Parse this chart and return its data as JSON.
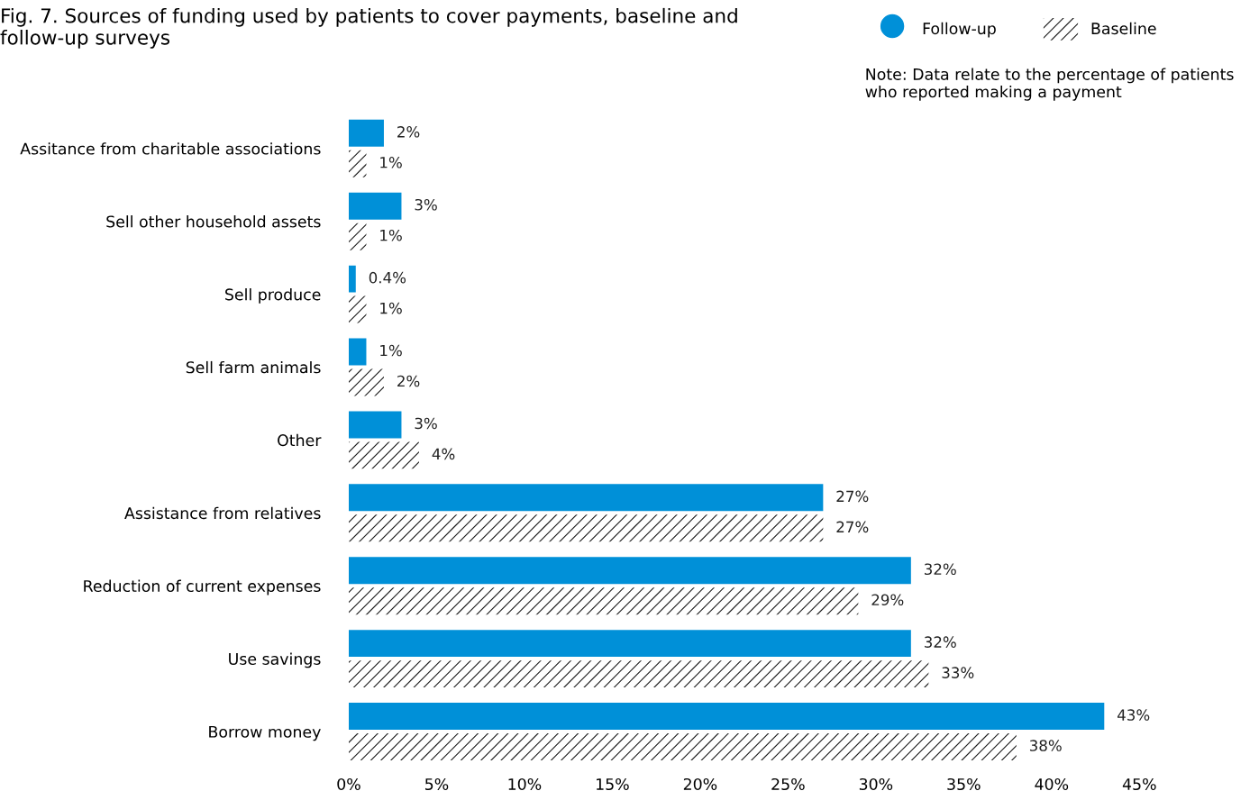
{
  "chart_data": {
    "type": "bar",
    "orientation": "horizontal",
    "title": "Fig. 7. Sources of funding used by patients to cover payments, baseline and follow-up surveys",
    "annotations": [
      "Note: Data relate to the percentage of patients who reported making a payment"
    ],
    "categories": [
      "Assitance from charitable associations",
      "Sell other household assets",
      "Sell produce",
      "Sell farm animals",
      "Other",
      "Assistance from relatives",
      "Reduction of current expenses",
      "Use savings",
      "Borrow money"
    ],
    "series": [
      {
        "name": "Follow-up",
        "color": "#0090d8",
        "values": [
          2,
          3,
          0.4,
          1,
          3,
          27,
          32,
          32,
          43
        ],
        "value_labels": [
          "2%",
          "3%",
          "0.4%",
          "1%",
          "3%",
          "27%",
          "32%",
          "32%",
          "43%"
        ]
      },
      {
        "name": "Baseline",
        "color": "#1a1a1a",
        "values": [
          1,
          1,
          1,
          2,
          4,
          27,
          29,
          33,
          38
        ],
        "value_labels": [
          "1%",
          "1%",
          "1%",
          "2%",
          "4%",
          "27%",
          "29%",
          "33%",
          "38%"
        ]
      }
    ],
    "xlim": [
      0,
      45
    ],
    "xticks": [
      {
        "value": 0,
        "label": "0%"
      },
      {
        "value": 5,
        "label": "5%"
      },
      {
        "value": 10,
        "label": "10%"
      },
      {
        "value": 15,
        "label": "15%"
      },
      {
        "value": 20,
        "label": "20%"
      },
      {
        "value": 25,
        "label": "25%"
      },
      {
        "value": 30,
        "label": "30%"
      },
      {
        "value": 35,
        "label": "35%"
      },
      {
        "value": 40,
        "label": "40%"
      },
      {
        "value": 45,
        "label": "45%"
      }
    ],
    "grid": false,
    "legend": "top right"
  }
}
